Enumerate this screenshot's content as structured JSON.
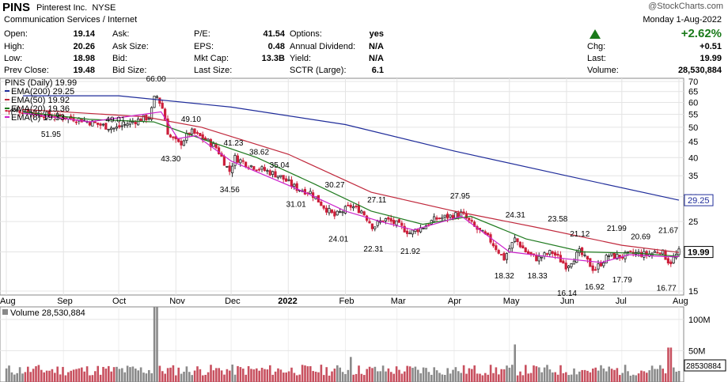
{
  "header": {
    "symbol": "PINS",
    "name": "Pinterest Inc.",
    "exchange": "NYSE",
    "category": "Communication Services / Internet",
    "watermark": "@StockCharts.com",
    "date": "Monday  1-Aug-2022",
    "change_pct": "+2.62%",
    "chg_label": "Chg:",
    "chg_value": "+0.51",
    "last_label": "Last:",
    "last_value": "19.99",
    "volume_label": "Volume:",
    "volume_value": "28,530,884",
    "quote": [
      {
        "label": "Open:",
        "value": "19.14"
      },
      {
        "label": "High:",
        "value": "20.26"
      },
      {
        "label": "Low:",
        "value": "18.98"
      },
      {
        "label": "Prev Close:",
        "value": "19.48"
      },
      {
        "label": "Ask:",
        "value": ""
      },
      {
        "label": "Ask Size:",
        "value": ""
      },
      {
        "label": "Bid:",
        "value": ""
      },
      {
        "label": "Bid Size:",
        "value": ""
      },
      {
        "label": "P/E:",
        "value": "41.54"
      },
      {
        "label": "EPS:",
        "value": "0.48"
      },
      {
        "label": "Mkt Cap:",
        "value": "13.3B"
      },
      {
        "label": "Last Size:",
        "value": ""
      },
      {
        "label": "Options:",
        "value": "yes"
      },
      {
        "label": "Annual Dividend:",
        "value": "N/A"
      },
      {
        "label": "Yield:",
        "value": "N/A"
      },
      {
        "label": "SCTR (Large):",
        "value": "6.1"
      }
    ]
  },
  "chart_data": {
    "type": "candlestick",
    "legend": [
      {
        "text": "PINS (Daily) 19.99",
        "color": "#000000"
      },
      {
        "text": "EMA(200) 29.25",
        "color": "#1f2c9a"
      },
      {
        "text": "EMA(50) 19.92",
        "color": "#c0283c"
      },
      {
        "text": "EMA(20) 19.36",
        "color": "#1f7a1f"
      },
      {
        "text": "EMA(8) 19.33",
        "color": "#cc22cc"
      }
    ],
    "price_axis": {
      "min": 15,
      "max": 70,
      "scale": "log",
      "ticks": [
        15,
        20,
        25,
        30,
        35,
        40,
        45,
        50,
        55,
        60,
        65,
        70
      ]
    },
    "months": [
      "Aug",
      "Sep",
      "Oct",
      "Nov",
      "Dec",
      "2022",
      "Feb",
      "Mar",
      "Apr",
      "May",
      "Jun",
      "Jul",
      "Aug"
    ],
    "price_labels": [
      {
        "date": "2021-08-25",
        "value": "51.95"
      },
      {
        "date": "2021-09-29",
        "value": "49.01"
      },
      {
        "date": "2021-10-21",
        "value": "66.00"
      },
      {
        "date": "2021-10-29",
        "value": "43.30"
      },
      {
        "date": "2021-11-09",
        "value": "49.10"
      },
      {
        "date": "2021-11-30",
        "value": "34.56"
      },
      {
        "date": "2021-12-02",
        "value": "41.23"
      },
      {
        "date": "2021-12-16",
        "value": "38.62"
      },
      {
        "date": "2021-12-27",
        "value": "35.04"
      },
      {
        "date": "2022-01-05",
        "value": "31.01"
      },
      {
        "date": "2022-01-26",
        "value": "30.27"
      },
      {
        "date": "2022-01-28",
        "value": "24.01"
      },
      {
        "date": "2022-02-16",
        "value": "22.31"
      },
      {
        "date": "2022-02-18",
        "value": "27.11"
      },
      {
        "date": "2022-03-08",
        "value": "21.92"
      },
      {
        "date": "2022-04-04",
        "value": "27.95"
      },
      {
        "date": "2022-04-28",
        "value": "18.32"
      },
      {
        "date": "2022-05-04",
        "value": "24.31"
      },
      {
        "date": "2022-05-16",
        "value": "18.33"
      },
      {
        "date": "2022-05-27",
        "value": "23.58"
      },
      {
        "date": "2022-06-01",
        "value": "16.14"
      },
      {
        "date": "2022-06-08",
        "value": "21.12"
      },
      {
        "date": "2022-06-16",
        "value": "16.92"
      },
      {
        "date": "2022-06-28",
        "value": "21.99"
      },
      {
        "date": "2022-07-01",
        "value": "17.79"
      },
      {
        "date": "2022-07-11",
        "value": "20.69"
      },
      {
        "date": "2022-07-25",
        "value": "16.77"
      },
      {
        "date": "2022-07-26",
        "value": "21.67"
      }
    ],
    "close_series": [
      [
        "2021-08-10",
        56.5
      ],
      [
        "2021-08-20",
        55
      ],
      [
        "2021-08-31",
        54
      ],
      [
        "2021-09-10",
        53
      ],
      [
        "2021-09-20",
        51
      ],
      [
        "2021-09-29",
        49.5
      ],
      [
        "2021-10-08",
        52
      ],
      [
        "2021-10-18",
        54
      ],
      [
        "2021-10-21",
        64
      ],
      [
        "2021-10-25",
        57
      ],
      [
        "2021-10-28",
        47
      ],
      [
        "2021-11-03",
        44
      ],
      [
        "2021-11-09",
        48.5
      ],
      [
        "2021-11-16",
        46
      ],
      [
        "2021-11-23",
        43
      ],
      [
        "2021-11-30",
        36
      ],
      [
        "2021-12-03",
        40
      ],
      [
        "2021-12-10",
        38
      ],
      [
        "2021-12-16",
        37
      ],
      [
        "2021-12-27",
        35
      ],
      [
        "2022-01-05",
        32
      ],
      [
        "2022-01-13",
        31
      ],
      [
        "2022-01-20",
        28
      ],
      [
        "2022-01-26",
        26
      ],
      [
        "2022-02-04",
        28
      ],
      [
        "2022-02-10",
        27
      ],
      [
        "2022-02-16",
        24
      ],
      [
        "2022-02-22",
        25.5
      ],
      [
        "2022-03-01",
        24.5
      ],
      [
        "2022-03-08",
        23
      ],
      [
        "2022-03-15",
        24
      ],
      [
        "2022-03-22",
        25.5
      ],
      [
        "2022-03-30",
        26
      ],
      [
        "2022-04-05",
        26.5
      ],
      [
        "2022-04-12",
        24
      ],
      [
        "2022-04-20",
        22
      ],
      [
        "2022-04-28",
        19
      ],
      [
        "2022-05-04",
        22
      ],
      [
        "2022-05-10",
        20
      ],
      [
        "2022-05-16",
        19
      ],
      [
        "2022-05-24",
        20
      ],
      [
        "2022-06-01",
        18
      ],
      [
        "2022-06-08",
        20
      ],
      [
        "2022-06-16",
        17.5
      ],
      [
        "2022-06-24",
        19.5
      ],
      [
        "2022-06-30",
        19.3
      ],
      [
        "2022-07-08",
        19.8
      ],
      [
        "2022-07-15",
        19.6
      ],
      [
        "2022-07-22",
        20.3
      ],
      [
        "2022-07-27",
        18.4
      ],
      [
        "2022-08-01",
        19.99
      ]
    ],
    "ema_series": {
      "ema200": [
        [
          "2021-08-10",
          63
        ],
        [
          "2021-10-01",
          63
        ],
        [
          "2021-12-01",
          58
        ],
        [
          "2022-02-01",
          51
        ],
        [
          "2022-04-01",
          42
        ],
        [
          "2022-06-01",
          35
        ],
        [
          "2022-08-01",
          29.25
        ]
      ],
      "ema50": [
        [
          "2021-08-10",
          57
        ],
        [
          "2021-10-15",
          54
        ],
        [
          "2021-11-15",
          50
        ],
        [
          "2022-01-01",
          41
        ],
        [
          "2022-02-15",
          31
        ],
        [
          "2022-04-01",
          27
        ],
        [
          "2022-05-15",
          24
        ],
        [
          "2022-07-01",
          21
        ],
        [
          "2022-08-01",
          19.92
        ]
      ],
      "ema20": [
        [
          "2021-08-10",
          56
        ],
        [
          "2021-09-15",
          53
        ],
        [
          "2021-10-20",
          52
        ],
        [
          "2021-11-10",
          47
        ],
        [
          "2021-12-15",
          40
        ],
        [
          "2022-01-15",
          33
        ],
        [
          "2022-02-15",
          27
        ],
        [
          "2022-03-15",
          24.5
        ],
        [
          "2022-04-10",
          26
        ],
        [
          "2022-05-10",
          22
        ],
        [
          "2022-06-10",
          20
        ],
        [
          "2022-07-10",
          19.8
        ],
        [
          "2022-08-01",
          19.36
        ]
      ],
      "ema8": [
        [
          "2021-08-10",
          55.5
        ],
        [
          "2021-09-15",
          52
        ],
        [
          "2021-10-24",
          56
        ],
        [
          "2021-11-02",
          46
        ],
        [
          "2021-11-12",
          47
        ],
        [
          "2021-12-01",
          39
        ],
        [
          "2022-01-10",
          31
        ],
        [
          "2022-02-01",
          27
        ],
        [
          "2022-02-20",
          25
        ],
        [
          "2022-03-10",
          23.5
        ],
        [
          "2022-04-05",
          26
        ],
        [
          "2022-05-01",
          20
        ],
        [
          "2022-06-01",
          19
        ],
        [
          "2022-06-20",
          18.5
        ],
        [
          "2022-07-05",
          19.6
        ],
        [
          "2022-07-26",
          19.3
        ],
        [
          "2022-08-01",
          19.33
        ]
      ]
    },
    "last_price_label": "19.99",
    "ema200_label": "29.25",
    "volume": {
      "legend": "Volume 28,530,884",
      "axis_ticks": [
        "100M",
        "50M"
      ],
      "axis_values": [
        100,
        50
      ],
      "max": 120,
      "last_label": "28530884",
      "spikes_millions": [
        [
          "2021-10-21",
          120
        ],
        [
          "2022-05-04",
          60
        ],
        [
          "2022-07-27",
          55
        ],
        [
          "2022-02-04",
          40
        ]
      ]
    }
  }
}
